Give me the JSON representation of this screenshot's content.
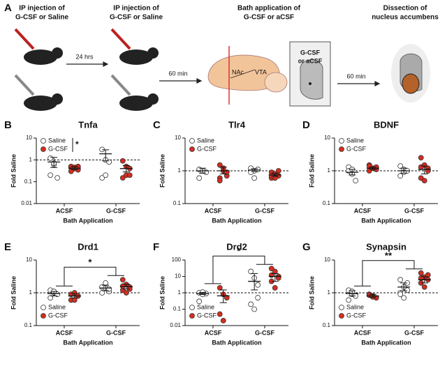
{
  "diagram": {
    "panel": "A",
    "steps": [
      [
        "IP injection of",
        "G-CSF or Saline"
      ],
      [
        "IP injection of",
        "G-CSF or Saline"
      ],
      [
        "Bath application of",
        "G-CSF or aCSF"
      ],
      [
        "Dissection of",
        "nucleus accumbens"
      ]
    ],
    "arrows": [
      "24 hrs",
      "60 min",
      "60 min"
    ],
    "brain_labels": [
      "NAc",
      "VTA"
    ],
    "inset_label": [
      "G-CSF",
      "or aCSF"
    ]
  },
  "chart_data": [
    {
      "type": "dot",
      "panel": "B",
      "title": "Tnfa",
      "ylabel": "Fold Saline",
      "xlabel": "Bath Application",
      "categories": [
        "ACSF",
        "G-CSF"
      ],
      "log_y": true,
      "ylim": [
        0.01,
        10
      ],
      "yticks": [
        0.01,
        0.1,
        1,
        10
      ],
      "hline": 1,
      "legend": "upper left",
      "annotation": "*",
      "series": [
        {
          "name": "Saline",
          "color": "#ffffff",
          "values": [
            [
              1.2,
              0.6,
              0.15,
              0.2,
              0.7
            ],
            [
              3,
              1,
              0.8,
              0.15,
              0.2
            ]
          ],
          "mean": [
            0.8,
            1.9
          ],
          "sem_low": [
            0.45,
            0.9
          ],
          "sem_high": [
            1.3,
            2.9
          ]
        },
        {
          "name": "G-CSF",
          "color": "#d62d20",
          "values": [
            [
              0.45,
              0.4,
              0.35,
              0.5,
              0.45,
              0.5,
              0.3
            ],
            [
              0.9,
              0.5,
              0.4,
              0.15,
              0.2,
              0.2
            ]
          ],
          "mean": [
            0.42,
            0.4
          ],
          "sem_low": [
            0.36,
            0.28
          ],
          "sem_high": [
            0.5,
            0.55
          ]
        }
      ]
    },
    {
      "type": "dot",
      "panel": "C",
      "title": "Tlr4",
      "ylabel": "Fold Saline",
      "xlabel": "Bath Application",
      "categories": [
        "ACSF",
        "G-CSF"
      ],
      "log_y": true,
      "ylim": [
        0.1,
        10
      ],
      "yticks": [
        0.1,
        1,
        10
      ],
      "hline": 1,
      "legend": "upper left",
      "series": [
        {
          "name": "Saline",
          "color": "#ffffff",
          "values": [
            [
              1.1,
              1.0,
              0.9,
              0.6,
              1.0
            ],
            [
              1.2,
              1.0,
              1.1,
              0.9,
              0.6
            ]
          ],
          "mean": [
            1.0,
            1.05
          ],
          "sem_low": [
            0.85,
            0.95
          ],
          "sem_high": [
            1.2,
            1.15
          ]
        },
        {
          "name": "G-CSF",
          "color": "#d62d20",
          "values": [
            [
              1.5,
              1.2,
              0.7,
              0.6,
              1.0,
              0.9,
              0.5
            ],
            [
              0.9,
              0.8,
              0.7,
              0.6,
              0.6,
              1.0,
              0.7
            ]
          ],
          "mean": [
            1.0,
            0.75
          ],
          "sem_low": [
            0.8,
            0.68
          ],
          "sem_high": [
            1.3,
            0.85
          ]
        }
      ]
    },
    {
      "type": "dot",
      "panel": "D",
      "title": "BDNF",
      "ylabel": "Fold Saline",
      "xlabel": "Bath Application",
      "categories": [
        "ACSF",
        "G-CSF"
      ],
      "log_y": true,
      "ylim": [
        0.1,
        10
      ],
      "yticks": [
        0.1,
        1,
        10
      ],
      "hline": 1,
      "legend": "upper left",
      "series": [
        {
          "name": "Saline",
          "color": "#ffffff",
          "values": [
            [
              1.3,
              0.8,
              0.5,
              1.0,
              1.1
            ],
            [
              1.4,
              1.1,
              1.0,
              0.7,
              0.9
            ]
          ],
          "mean": [
            0.9,
            1.0
          ],
          "sem_low": [
            0.75,
            0.85
          ],
          "sem_high": [
            1.1,
            1.2
          ]
        },
        {
          "name": "G-CSF",
          "color": "#d62d20",
          "values": [
            [
              1.5,
              1.2,
              1.1,
              1.0,
              1.2,
              1.3,
              1.4
            ],
            [
              2.5,
              1.5,
              1.2,
              0.6,
              0.5,
              1.0,
              1.3
            ]
          ],
          "mean": [
            1.2,
            1.1
          ],
          "sem_low": [
            1.1,
            0.8
          ],
          "sem_high": [
            1.3,
            1.4
          ]
        }
      ]
    },
    {
      "type": "dot",
      "panel": "E",
      "title": "Drd1",
      "ylabel": "Fold Saline",
      "xlabel": "Bath Application",
      "categories": [
        "ACSF",
        "G-CSF"
      ],
      "log_y": true,
      "ylim": [
        0.1,
        10
      ],
      "yticks": [
        0.1,
        1,
        10
      ],
      "hline": 1,
      "legend": "lower left",
      "annotation": "*",
      "series": [
        {
          "name": "Saline",
          "color": "#ffffff",
          "values": [
            [
              1.2,
              1.0,
              0.9,
              0.7,
              1.1
            ],
            [
              1.5,
              1.4,
              1.1,
              1.0,
              2.0,
              1.3
            ]
          ],
          "mean": [
            0.95,
            1.4
          ],
          "sem_low": [
            0.8,
            1.15
          ],
          "sem_high": [
            1.1,
            1.7
          ]
        },
        {
          "name": "G-CSF",
          "color": "#d62d20",
          "values": [
            [
              0.9,
              1.0,
              0.8,
              0.6,
              0.6
            ],
            [
              2.5,
              1.8,
              1.5,
              1.2,
              1.0,
              1.3,
              1.6
            ]
          ],
          "mean": [
            0.8,
            1.55
          ],
          "sem_low": [
            0.7,
            1.3
          ],
          "sem_high": [
            0.95,
            1.85
          ]
        }
      ]
    },
    {
      "type": "dot",
      "panel": "F",
      "title": "Drd2",
      "ylabel": "Fold Saline",
      "xlabel": "Bath Application",
      "categories": [
        "ACSF",
        "G-CSF"
      ],
      "log_y": true,
      "ylim": [
        0.01,
        100
      ],
      "yticks": [
        0.01,
        0.1,
        1,
        10,
        100
      ],
      "hline": 1,
      "legend": "lower left",
      "annotation": "*",
      "series": [
        {
          "name": "Saline",
          "color": "#ffffff",
          "values": [
            [
              1.0,
              0.8,
              0.9,
              0.3,
              1.1
            ],
            [
              20,
              8,
              0.5,
              0.2,
              0.1,
              3
            ]
          ],
          "mean": [
            0.9,
            5
          ],
          "sem_low": [
            0.8,
            1.5
          ],
          "sem_high": [
            1.05,
            15
          ]
        },
        {
          "name": "G-CSF",
          "color": "#d62d20",
          "values": [
            [
              2,
              0.8,
              0.5,
              0.05,
              0.02
            ],
            [
              30,
              20,
              10,
              5,
              2,
              8,
              12
            ]
          ],
          "mean": [
            0.65,
            10
          ],
          "sem_low": [
            0.25,
            5
          ],
          "sem_high": [
            1.5,
            15
          ]
        }
      ]
    },
    {
      "type": "dot",
      "panel": "G",
      "title": "Synapsin",
      "ylabel": "Fold Saline",
      "xlabel": "Bath Application",
      "categories": [
        "ACSF",
        "G-CSF"
      ],
      "log_y": true,
      "ylim": [
        0.1,
        10
      ],
      "yticks": [
        0.1,
        1,
        10
      ],
      "hline": 1,
      "legend": "lower left",
      "annotation": "**",
      "series": [
        {
          "name": "Saline",
          "color": "#ffffff",
          "values": [
            [
              1.2,
              0.9,
              0.8,
              0.6,
              1.1
            ],
            [
              2.5,
              1.5,
              1.2,
              1.0,
              0.7,
              2,
              0.9
            ]
          ],
          "mean": [
            0.95,
            1.5
          ],
          "sem_low": [
            0.8,
            1.15
          ],
          "sem_high": [
            1.15,
            2
          ]
        },
        {
          "name": "G-CSF",
          "color": "#d62d20",
          "values": [
            [
              0.9,
              0.8,
              0.7,
              0.85,
              0.75
            ],
            [
              4,
              3,
              2.5,
              2,
              1.5,
              3.5,
              2.8
            ]
          ],
          "mean": [
            0.8,
            2.5
          ],
          "sem_low": [
            0.72,
            2
          ],
          "sem_high": [
            0.9,
            3.1
          ]
        }
      ]
    }
  ]
}
